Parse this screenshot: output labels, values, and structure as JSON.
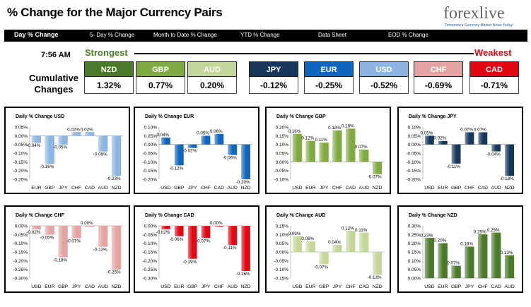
{
  "header": {
    "title": "% Change for the Major Currency Pairs",
    "logo_text": "forexlive",
    "logo_subtitle": "Tomorrow's Currency Market News Today"
  },
  "nav": {
    "items": [
      "Day % Change",
      "5- Day % Change",
      "Month to Date % Change",
      "YTD % Change",
      "Data Sheet",
      "EOD % Change"
    ]
  },
  "summary": {
    "time": "7:56 AM",
    "strongest_label": "Strongest",
    "weakest_label": "Weakest",
    "cumulative_label": "Cumulative Changes",
    "currencies": [
      {
        "name": "NZD",
        "value": "1.32%",
        "color": "#4b7a2b"
      },
      {
        "name": "GBP",
        "value": "0.77%",
        "color": "#7faa41"
      },
      {
        "name": "AUD",
        "value": "0.20%",
        "color": "#c4d79b"
      },
      {
        "name": "JPY",
        "value": "-0.12%",
        "color": "#16365c"
      },
      {
        "name": "EUR",
        "value": "-0.25%",
        "color": "#0f66c0"
      },
      {
        "name": "USD",
        "value": "-0.52%",
        "color": "#8db4e2"
      },
      {
        "name": "CHF",
        "value": "-0.69%",
        "color": "#e6a3a3"
      },
      {
        "name": "CAD",
        "value": "-0.71%",
        "color": "#e30613"
      }
    ]
  },
  "chart_data": [
    {
      "type": "bar",
      "title": "Daily % Change USD",
      "categories": [
        "EUR",
        "GBP",
        "JPY",
        "CHF",
        "CAD",
        "AUD",
        "NZD"
      ],
      "values": [
        -0.04,
        -0.16,
        -0.05,
        0.02,
        0.02,
        -0.09,
        -0.23
      ],
      "labels": [
        "-0.04%",
        "-0.16%",
        "-0.05%",
        "0.02%",
        "0.02%",
        "-0.09%",
        "-0.23%"
      ],
      "ylim": [
        -0.25,
        0.05
      ],
      "yticks": [
        "0.05%",
        "0.00%",
        "-0.05%",
        "-0.10%",
        "-0.15%",
        "-0.20%",
        "-0.25%"
      ],
      "color": "#8db4e2"
    },
    {
      "type": "bar",
      "title": "Daily % Change EUR",
      "categories": [
        "USD",
        "GBP",
        "JPY",
        "CHF",
        "CAD",
        "AUD",
        "NZD"
      ],
      "values": [
        0.04,
        -0.12,
        -0.02,
        0.05,
        0.06,
        -0.06,
        -0.2
      ],
      "labels": [
        "0.04%",
        "-0.12%",
        "-0.02%",
        "0.05%",
        "0.06%",
        "-0.06%",
        "-0.20%"
      ],
      "ylim": [
        -0.2,
        0.1
      ],
      "yticks": [
        "0.10%",
        "0.05%",
        "0.00%",
        "-0.05%",
        "-0.10%",
        "-0.15%",
        "-0.20%"
      ],
      "color": "#0f66c0"
    },
    {
      "type": "bar",
      "title": "Daily % Change GBP",
      "categories": [
        "USD",
        "EUR",
        "JPY",
        "CHF",
        "CAD",
        "AUD",
        "NZD"
      ],
      "values": [
        0.16,
        0.12,
        0.11,
        0.18,
        0.19,
        0.07,
        -0.07
      ],
      "labels": [
        "0.16%",
        "0.12%",
        "0.11%",
        "0.18%",
        "0.19%",
        "0.07%",
        "-0.07%"
      ],
      "ylim": [
        -0.1,
        0.2
      ],
      "yticks": [
        "0.20%",
        "0.15%",
        "0.10%",
        "0.05%",
        "0.00%",
        "-0.05%",
        "-0.10%"
      ],
      "color": "#7faa41"
    },
    {
      "type": "bar",
      "title": "Daily % Change JPY",
      "categories": [
        "USD",
        "EUR",
        "GBP",
        "CHF",
        "CAD",
        "AUD",
        "NZD"
      ],
      "values": [
        0.05,
        0.02,
        -0.11,
        0.07,
        0.07,
        -0.04,
        -0.18
      ],
      "labels": [
        "0.05%",
        "0.02%",
        "-0.11%",
        "0.07%",
        "0.07%",
        "-0.04%",
        "-0.18%"
      ],
      "ylim": [
        -0.2,
        0.1
      ],
      "yticks": [
        "0.10%",
        "0.05%",
        "0.00%",
        "-0.05%",
        "-0.10%",
        "-0.15%",
        "-0.20%"
      ],
      "color": "#16365c"
    },
    {
      "type": "bar",
      "title": "Daily % Change CHF",
      "categories": [
        "USD",
        "EUR",
        "GBP",
        "JPY",
        "CAD",
        "AUD",
        "NZD"
      ],
      "values": [
        -0.02,
        -0.05,
        -0.18,
        -0.07,
        0.0,
        -0.12,
        -0.25
      ],
      "labels": [
        "-0.02%",
        "-0.05%",
        "-0.18%",
        "-0.07%",
        "0.00%",
        "-0.12%",
        "-0.25%"
      ],
      "ylim": [
        -0.3,
        0.0
      ],
      "yticks": [
        "0.00%",
        "-0.05%",
        "-0.10%",
        "-0.15%",
        "-0.20%",
        "-0.25%",
        "-0.30%"
      ],
      "color": "#e6a3a3"
    },
    {
      "type": "bar",
      "title": "Daily % Change CAD",
      "categories": [
        "USD",
        "EUR",
        "GBP",
        "JPY",
        "CHF",
        "AUD",
        "NZD"
      ],
      "values": [
        -0.02,
        -0.06,
        -0.19,
        -0.07,
        0.0,
        -0.11,
        -0.26
      ],
      "labels": [
        "-0.02%",
        "-0.06%",
        "-0.19%",
        "-0.07%",
        "0.00%",
        "-0.11%",
        "-0.26%"
      ],
      "ylim": [
        -0.3,
        0.0
      ],
      "yticks": [
        "0.00%",
        "-0.05%",
        "-0.10%",
        "-0.15%",
        "-0.20%",
        "-0.25%",
        "-0.30%"
      ],
      "color": "#e30613"
    },
    {
      "type": "bar",
      "title": "Daily % Change AUD",
      "categories": [
        "USD",
        "EUR",
        "GBP",
        "JPY",
        "CHF",
        "CAD",
        "NZD"
      ],
      "values": [
        0.09,
        0.06,
        -0.07,
        0.04,
        0.12,
        0.11,
        -0.13
      ],
      "labels": [
        "0.09%",
        "0.06%",
        "-0.07%",
        "0.04%",
        "0.12%",
        "0.11%",
        "-0.13%"
      ],
      "ylim": [
        -0.15,
        0.15
      ],
      "yticks": [
        "0.15%",
        "0.10%",
        "0.05%",
        "0.00%",
        "-0.05%",
        "-0.10%",
        "-0.15%"
      ],
      "color": "#c4d79b"
    },
    {
      "type": "bar",
      "title": "Daily % Change NZD",
      "categories": [
        "USD",
        "EUR",
        "GBP",
        "JPY",
        "CHF",
        "CAD",
        "AUD"
      ],
      "values": [
        0.23,
        0.2,
        0.07,
        0.18,
        0.25,
        0.26,
        0.13
      ],
      "labels": [
        "0.23%",
        "0.20%",
        "0.07%",
        "0.18%",
        "0.25%",
        "0.26%",
        "0.13%"
      ],
      "ylim": [
        0.0,
        0.3
      ],
      "yticks": [
        "0.30%",
        "0.25%",
        "0.20%",
        "0.15%",
        "0.10%",
        "0.05%",
        "0.00%"
      ],
      "color": "#4b7a2b"
    }
  ]
}
